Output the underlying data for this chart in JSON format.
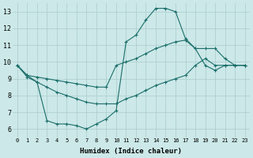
{
  "xlabel": "Humidex (Indice chaleur)",
  "background_color": "#cce8e8",
  "grid_color": "#aacccc",
  "line_color": "#1a6e6a",
  "xlim": [
    -0.5,
    23.5
  ],
  "ylim": [
    5.5,
    13.5
  ],
  "xticks": [
    0,
    1,
    2,
    3,
    4,
    5,
    6,
    7,
    8,
    9,
    10,
    11,
    12,
    13,
    14,
    15,
    16,
    17,
    18,
    19,
    20,
    21,
    22,
    23
  ],
  "yticks": [
    6,
    7,
    8,
    9,
    10,
    11,
    12,
    13
  ],
  "line1_x": [
    0,
    1,
    2,
    3,
    4,
    5,
    6,
    7,
    8,
    9,
    10,
    11,
    12,
    13,
    14,
    15,
    16,
    17,
    18,
    19,
    20,
    21,
    22,
    23
  ],
  "line1_y": [
    9.8,
    9.2,
    8.8,
    6.5,
    6.3,
    6.3,
    6.2,
    6.0,
    6.3,
    6.6,
    7.1,
    11.2,
    11.6,
    12.5,
    13.2,
    13.2,
    13.0,
    11.4,
    10.8,
    9.8,
    9.5,
    9.8,
    9.8,
    9.8
  ],
  "line2_x": [
    0,
    1,
    2,
    3,
    4,
    5,
    6,
    7,
    8,
    9,
    10,
    11,
    12,
    13,
    14,
    15,
    16,
    17,
    18,
    19,
    20,
    21,
    22,
    23
  ],
  "line2_y": [
    9.8,
    9.2,
    9.1,
    9.0,
    8.9,
    8.8,
    8.7,
    8.6,
    8.5,
    8.5,
    9.8,
    10.0,
    10.2,
    10.5,
    10.8,
    11.0,
    11.2,
    11.3,
    10.8,
    10.8,
    10.8,
    10.2,
    9.8,
    9.8
  ],
  "line3_x": [
    0,
    1,
    2,
    3,
    4,
    5,
    6,
    7,
    8,
    9,
    10,
    11,
    12,
    13,
    14,
    15,
    16,
    17,
    18,
    19,
    20,
    21,
    22,
    23
  ],
  "line3_y": [
    9.8,
    9.1,
    8.8,
    8.5,
    8.2,
    8.0,
    7.8,
    7.6,
    7.5,
    7.5,
    7.5,
    7.8,
    8.0,
    8.3,
    8.6,
    8.8,
    9.0,
    9.2,
    9.8,
    10.2,
    9.8,
    9.8,
    9.8,
    9.8
  ]
}
